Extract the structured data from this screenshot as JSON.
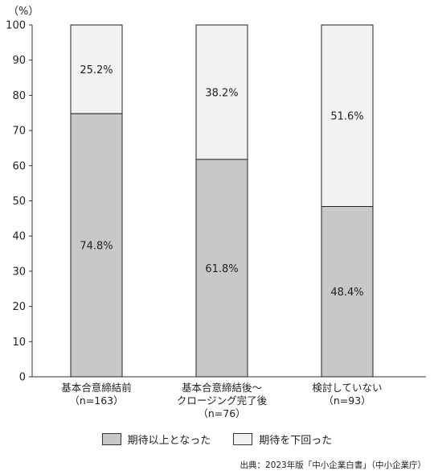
{
  "chart_data": {
    "type": "bar",
    "stacked": true,
    "unit_label": "（%）",
    "ylim": [
      0,
      100
    ],
    "yticks": [
      0,
      10,
      20,
      30,
      40,
      50,
      60,
      70,
      80,
      90,
      100
    ],
    "grid": false,
    "legend_position": "bottom",
    "categories": [
      [
        "基本合意締結前",
        "（n=163）"
      ],
      [
        "基本合意締結後～",
        "クロージング完了後",
        "（n=76）"
      ],
      [
        "検討していない",
        "（n=93）"
      ]
    ],
    "series": [
      {
        "name": "期待以上となった",
        "color": "#c8c8c8",
        "values": [
          74.8,
          61.8,
          48.4
        ],
        "labels": [
          "74.8%",
          "61.8%",
          "48.4%"
        ]
      },
      {
        "name": "期待を下回った",
        "color": "#f2f2f2",
        "values": [
          25.2,
          38.2,
          51.6
        ],
        "labels": [
          "25.2%",
          "38.2%",
          "51.6%"
        ]
      }
    ]
  },
  "legend": {
    "item1": "期待以上となった",
    "item2": "期待を下回った"
  },
  "source": "出典：2023年版「中小企業白書」（中小企業庁）"
}
